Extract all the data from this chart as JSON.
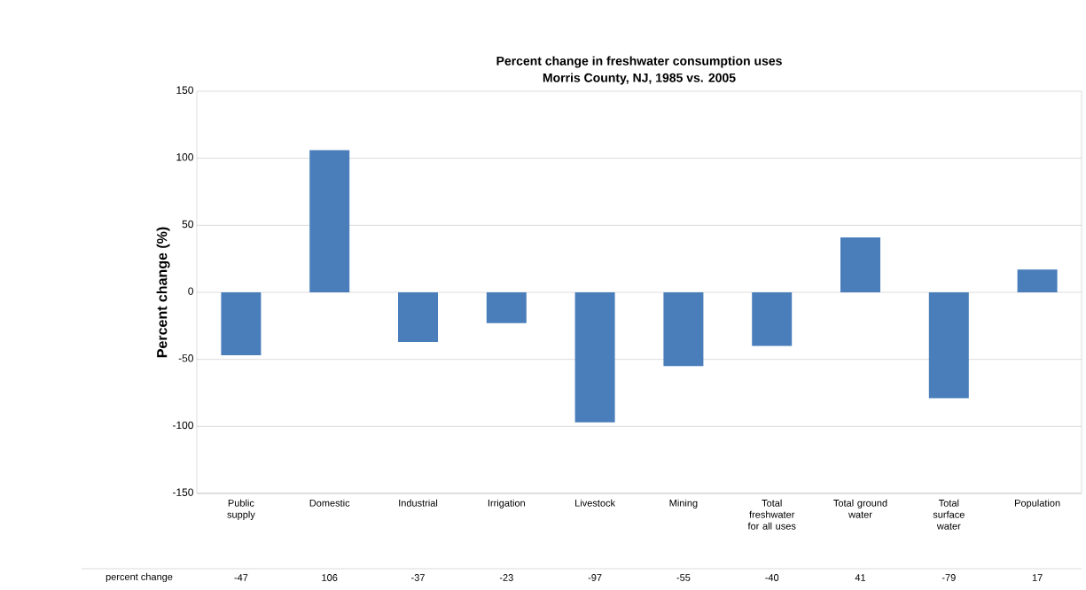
{
  "chart_data": {
    "type": "bar",
    "title": "Percent change in freshwater consumption uses",
    "subtitle": "Morris County, NJ,  1985 vs. 2005",
    "ylabel": "Percent change (%)",
    "categories": [
      "Public supply",
      "Domestic",
      "Industrial",
      "Irrigation",
      "Livestock",
      "Mining",
      "Total freshwater for all uses",
      "Total ground water",
      "Total surface water",
      "Population"
    ],
    "series": [
      {
        "name": "percent change",
        "color": "#4a7ebb",
        "values": [
          -47,
          106,
          -37,
          -23,
          -97,
          -55,
          -40,
          41,
          -79,
          17
        ]
      }
    ],
    "ylim": [
      -150,
      150
    ],
    "yticks": [
      -150,
      -100,
      -50,
      0,
      50,
      100,
      150
    ],
    "grid": "y",
    "data_labels": true
  }
}
